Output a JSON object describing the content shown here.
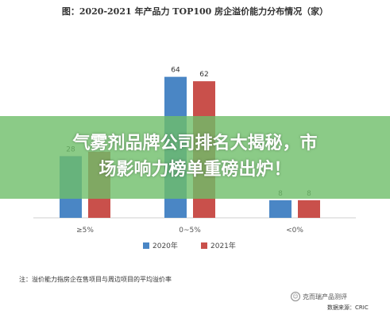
{
  "title": "图：2020-2021 年产品力 TOP100 房企溢价能力分布情况（家）",
  "banner": {
    "line1": "气雾剂品牌公司排名大揭秘，市",
    "line2": "场影响力榜单重磅出炉！"
  },
  "note": "注：溢价能力指房企在售项目与周边项目的平均溢价率",
  "watermark": "克而瑞产品测评",
  "source": "数据来源：CRIC",
  "colors": {
    "series2020": "#4a86c5",
    "series2021": "#c9504b"
  },
  "chart_data": {
    "type": "bar",
    "categories": [
      "≥5%",
      "0~5%",
      "<0%"
    ],
    "series": [
      {
        "name": "2020年",
        "values": [
          28,
          64,
          8
        ]
      },
      {
        "name": "2021年",
        "values": [
          30,
          62,
          8
        ]
      }
    ],
    "ylim": [
      0,
      70
    ],
    "grid": false,
    "legend": "bottom"
  }
}
